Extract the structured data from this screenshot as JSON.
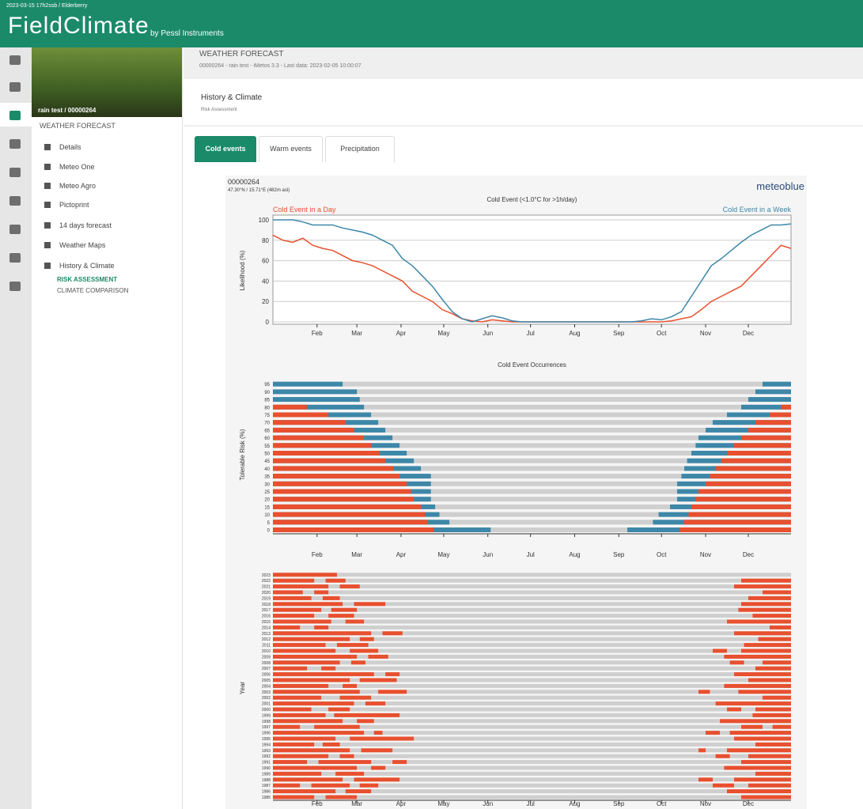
{
  "header": {
    "breadcrumb": "2023-03-15 17h2ssb / Elderberry",
    "logo": "FieldClimate",
    "tagline": "by Pessl Instruments"
  },
  "station_name": "rain test / 00000264",
  "sidebar": {
    "section": "WEATHER FORECAST",
    "items": [
      "Details",
      "Meteo One",
      "Meteo Agro",
      "Pictoprint",
      "14 days forecast",
      "Weather Maps",
      "History & Climate"
    ],
    "subitems": [
      "RISK ASSESSMENT",
      "CLIMATE COMPARISON"
    ]
  },
  "page": {
    "title": "WEATHER FORECAST",
    "subtitle": "00000264 - rain test - iMetos 3.3 - Last data: 2023-02-05 10:00:07",
    "card_title": "History & Climate",
    "card_subtitle": "Risk Assessment"
  },
  "tabs": [
    "Cold events",
    "Warm events",
    "Precipitation"
  ],
  "panel": {
    "station": "00000264",
    "coords": "47.30°N / 15.71°E (482m asl)",
    "brand": "meteoblue"
  },
  "chart_data": [
    {
      "type": "line",
      "title": "Cold Event (<1.0°C for >1h/day)",
      "y_label": "Likelihood (%)",
      "x": [
        1,
        8,
        15,
        22,
        29,
        36,
        43,
        50,
        57,
        64,
        71,
        78,
        85,
        92,
        99,
        106,
        113,
        120,
        127,
        134,
        141,
        148,
        155,
        162,
        169,
        176,
        183,
        190,
        197,
        204,
        211,
        218,
        225,
        232,
        239,
        246,
        253,
        260,
        267,
        274,
        281,
        288,
        295,
        302,
        309,
        316,
        323,
        330,
        337,
        344,
        351,
        358,
        365
      ],
      "xlim": [
        1,
        365
      ],
      "xticks": [
        {
          "value": 32,
          "label": "Feb"
        },
        {
          "value": 60,
          "label": "Mar"
        },
        {
          "value": 91,
          "label": "Apr"
        },
        {
          "value": 121,
          "label": "May"
        },
        {
          "value": 152,
          "label": "Jun"
        },
        {
          "value": 182,
          "label": "Jul"
        },
        {
          "value": 213,
          "label": "Aug"
        },
        {
          "value": 244,
          "label": "Sep"
        },
        {
          "value": 274,
          "label": "Oct"
        },
        {
          "value": 305,
          "label": "Nov"
        },
        {
          "value": 335,
          "label": "Dec"
        }
      ],
      "ylim": [
        0,
        100
      ],
      "yticks": [
        0,
        20,
        40,
        60,
        80,
        100
      ],
      "grid": true,
      "series": [
        {
          "name": "Cold Event in a Day",
          "color": "#e8502f",
          "values": [
            85,
            80,
            78,
            82,
            75,
            72,
            70,
            65,
            60,
            58,
            55,
            50,
            45,
            40,
            30,
            25,
            20,
            12,
            8,
            3,
            1,
            0,
            2,
            1,
            0,
            0,
            0,
            0,
            0,
            0,
            0,
            0,
            0,
            0,
            0,
            0,
            0,
            0,
            0,
            0,
            1,
            3,
            5,
            12,
            20,
            25,
            30,
            35,
            45,
            55,
            65,
            75,
            72
          ]
        },
        {
          "name": "Cold Event in a Week",
          "color": "#3d87a8",
          "values": [
            100,
            100,
            100,
            98,
            95,
            95,
            95,
            92,
            90,
            88,
            85,
            80,
            75,
            62,
            55,
            45,
            35,
            22,
            10,
            3,
            0,
            3,
            6,
            4,
            1,
            0,
            0,
            0,
            0,
            0,
            0,
            0,
            0,
            0,
            0,
            0,
            0,
            1,
            3,
            2,
            5,
            10,
            25,
            40,
            55,
            62,
            70,
            78,
            85,
            90,
            95,
            95,
            96
          ]
        }
      ]
    },
    {
      "type": "range_bar",
      "title": "Cold Event Occurrences",
      "y_label": "Tolerable Risk (%)",
      "levels": [
        0,
        5,
        10,
        15,
        20,
        25,
        30,
        35,
        40,
        45,
        50,
        55,
        60,
        65,
        70,
        75,
        80,
        85,
        90,
        95
      ],
      "red_end": [
        114,
        110,
        108,
        105,
        100,
        98,
        95,
        90,
        86,
        80,
        76,
        70,
        65,
        58,
        52,
        40,
        25,
        null,
        null,
        null
      ],
      "blue_end": [
        154,
        125,
        118,
        115,
        112,
        112,
        112,
        112,
        105,
        100,
        95,
        90,
        85,
        80,
        75,
        70,
        65,
        62,
        60,
        50
      ],
      "blue_start": [
        250,
        268,
        272,
        280,
        285,
        285,
        285,
        288,
        290,
        292,
        295,
        298,
        300,
        305,
        310,
        320,
        330,
        335,
        340,
        345
      ],
      "red_start": [
        287,
        290,
        293,
        295,
        298,
        300,
        305,
        308,
        312,
        316,
        320,
        325,
        330,
        335,
        340,
        350,
        358,
        null,
        null,
        null
      ],
      "red_color": "#e8502f",
      "blue_color": "#3d87a8",
      "xlim": [
        1,
        365
      ],
      "xticks": [
        {
          "value": 32,
          "label": "Feb"
        },
        {
          "value": 60,
          "label": "Mar"
        },
        {
          "value": 91,
          "label": "Apr"
        },
        {
          "value": 121,
          "label": "May"
        },
        {
          "value": 152,
          "label": "Jun"
        },
        {
          "value": 182,
          "label": "Jul"
        },
        {
          "value": 213,
          "label": "Aug"
        },
        {
          "value": 244,
          "label": "Sep"
        },
        {
          "value": 274,
          "label": "Oct"
        },
        {
          "value": 305,
          "label": "Nov"
        },
        {
          "value": 335,
          "label": "Dec"
        }
      ]
    },
    {
      "type": "timeline",
      "y_label": "Year",
      "color": "#e8502f",
      "xlim": [
        1,
        365
      ],
      "xticks": [
        {
          "value": 32,
          "label": "Feb"
        },
        {
          "value": 60,
          "label": "Mar"
        },
        {
          "value": 91,
          "label": "Apr"
        },
        {
          "value": 121,
          "label": "May"
        },
        {
          "value": 152,
          "label": "Jun"
        },
        {
          "value": 182,
          "label": "Jul"
        },
        {
          "value": 213,
          "label": "Aug"
        },
        {
          "value": 244,
          "label": "Sep"
        },
        {
          "value": 274,
          "label": "Oct"
        },
        {
          "value": 305,
          "label": "Nov"
        },
        {
          "value": 335,
          "label": "Dec"
        }
      ],
      "years": [
        "1985",
        "1986",
        "1987",
        "1988",
        "1989",
        "1990",
        "1991",
        "1992",
        "1993",
        "1994",
        "1995",
        "1996",
        "1997",
        "1998",
        "1999",
        "2000",
        "2001",
        "2002",
        "2003",
        "2004",
        "2005",
        "2006",
        "2007",
        "2008",
        "2009",
        "2010",
        "2011",
        "2012",
        "2013",
        "2014",
        "2015",
        "2016",
        "2017",
        "2018",
        "2019",
        "2020",
        "2021",
        "2022",
        "2023"
      ],
      "segments": [
        [
          [
            1,
            30
          ],
          [
            38,
            60
          ],
          [
            330,
            365
          ]
        ],
        [
          [
            1,
            45
          ],
          [
            52,
            70
          ],
          [
            320,
            365
          ]
        ],
        [
          [
            1,
            20
          ],
          [
            28,
            55
          ],
          [
            62,
            75
          ],
          [
            310,
            325
          ],
          [
            335,
            365
          ]
        ],
        [
          [
            1,
            50
          ],
          [
            58,
            90
          ],
          [
            300,
            310
          ],
          [
            325,
            365
          ]
        ],
        [
          [
            1,
            35
          ],
          [
            45,
            65
          ],
          [
            340,
            365
          ]
        ],
        [
          [
            1,
            60
          ],
          [
            70,
            80
          ],
          [
            318,
            365
          ]
        ],
        [
          [
            1,
            25
          ],
          [
            33,
            70
          ],
          [
            85,
            95
          ],
          [
            330,
            365
          ]
        ],
        [
          [
            1,
            40
          ],
          [
            48,
            58
          ],
          [
            312,
            322
          ],
          [
            335,
            365
          ]
        ],
        [
          [
            1,
            55
          ],
          [
            63,
            85
          ],
          [
            300,
            305
          ],
          [
            320,
            365
          ]
        ],
        [
          [
            1,
            30
          ],
          [
            36,
            48
          ],
          [
            340,
            365
          ]
        ],
        [
          [
            1,
            45
          ],
          [
            55,
            100
          ],
          [
            325,
            365
          ]
        ],
        [
          [
            1,
            65
          ],
          [
            72,
            78
          ],
          [
            305,
            315
          ],
          [
            322,
            365
          ]
        ],
        [
          [
            1,
            20
          ],
          [
            30,
            62
          ],
          [
            330,
            345
          ],
          [
            352,
            365
          ]
        ],
        [
          [
            1,
            50
          ],
          [
            60,
            72
          ],
          [
            315,
            365
          ]
        ],
        [
          [
            1,
            38
          ],
          [
            44,
            90
          ],
          [
            338,
            365
          ]
        ],
        [
          [
            1,
            28
          ],
          [
            40,
            55
          ],
          [
            320,
            330
          ],
          [
            340,
            365
          ]
        ],
        [
          [
            1,
            58
          ],
          [
            66,
            80
          ],
          [
            312,
            365
          ]
        ],
        [
          [
            1,
            35
          ],
          [
            48,
            70
          ],
          [
            345,
            365
          ]
        ],
        [
          [
            1,
            62
          ],
          [
            75,
            95
          ],
          [
            300,
            308
          ],
          [
            328,
            365
          ]
        ],
        [
          [
            1,
            40
          ],
          [
            50,
            60
          ],
          [
            318,
            365
          ]
        ],
        [
          [
            1,
            55
          ],
          [
            62,
            88
          ],
          [
            335,
            365
          ]
        ],
        [
          [
            1,
            72
          ],
          [
            80,
            90
          ],
          [
            325,
            365
          ]
        ],
        [
          [
            1,
            25
          ],
          [
            35,
            45
          ],
          [
            340,
            365
          ]
        ],
        [
          [
            1,
            48
          ],
          [
            56,
            66
          ],
          [
            322,
            332
          ],
          [
            345,
            365
          ]
        ],
        [
          [
            1,
            60
          ],
          [
            68,
            82
          ],
          [
            318,
            365
          ]
        ],
        [
          [
            1,
            45
          ],
          [
            55,
            75
          ],
          [
            310,
            320
          ],
          [
            330,
            365
          ]
        ],
        [
          [
            1,
            38
          ],
          [
            46,
            68
          ],
          [
            332,
            365
          ]
        ],
        [
          [
            1,
            55
          ],
          [
            62,
            72
          ],
          [
            342,
            365
          ]
        ],
        [
          [
            1,
            70
          ],
          [
            78,
            92
          ],
          [
            325,
            365
          ]
        ],
        [
          [
            1,
            20
          ],
          [
            30,
            40
          ],
          [
            350,
            365
          ]
        ],
        [
          [
            1,
            42
          ],
          [
            52,
            65
          ],
          [
            320,
            365
          ]
        ],
        [
          [
            1,
            30
          ],
          [
            40,
            58
          ],
          [
            338,
            365
          ]
        ],
        [
          [
            1,
            35
          ],
          [
            42,
            60
          ],
          [
            328,
            365
          ]
        ],
        [
          [
            1,
            50
          ],
          [
            58,
            80
          ],
          [
            330,
            365
          ]
        ],
        [
          [
            1,
            28
          ],
          [
            36,
            48
          ],
          [
            335,
            365
          ]
        ],
        [
          [
            1,
            22
          ],
          [
            30,
            40
          ],
          [
            345,
            365
          ]
        ],
        [
          [
            1,
            40
          ],
          [
            48,
            62
          ],
          [
            325,
            365
          ]
        ],
        [
          [
            1,
            30
          ],
          [
            38,
            52
          ],
          [
            330,
            365
          ]
        ],
        [
          [
            1,
            46
          ]
        ]
      ]
    }
  ]
}
